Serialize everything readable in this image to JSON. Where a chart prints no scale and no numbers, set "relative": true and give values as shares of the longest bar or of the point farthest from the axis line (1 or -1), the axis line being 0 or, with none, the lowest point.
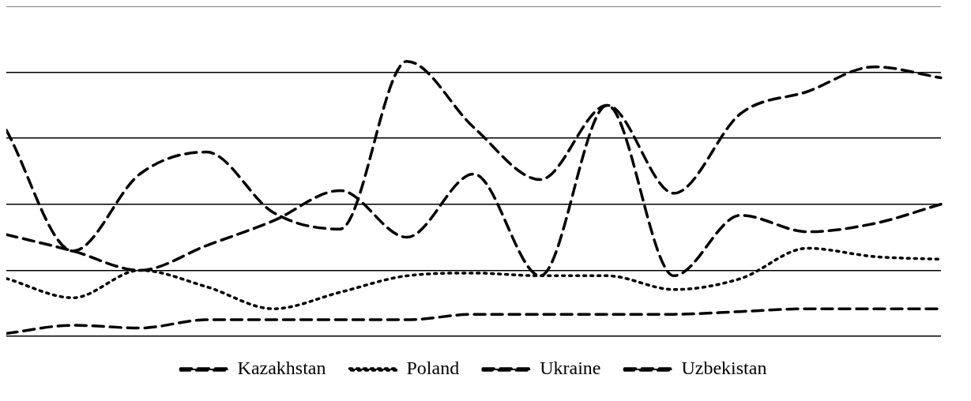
{
  "chart_data": {
    "type": "line",
    "relative": true,
    "grid": "y",
    "legend": "bottom",
    "marker": "none",
    "categories": [
      null,
      null,
      null,
      null,
      null,
      null,
      null,
      null,
      null,
      null,
      null,
      null,
      null,
      null,
      null
    ],
    "series": [
      {
        "name": "Kazakhstan",
        "color": "#000000",
        "line_style": "dashed",
        "values": [
          0.37,
          0.31,
          0.24,
          0.33,
          0.42,
          0.53,
          0.36,
          0.59,
          0.22,
          0.84,
          0.22,
          0.44,
          0.38,
          0.41,
          0.48
        ]
      },
      {
        "name": "Poland",
        "color": "#000000",
        "line_style": "dotted",
        "values": [
          0.21,
          0.14,
          0.24,
          0.18,
          0.1,
          0.16,
          0.22,
          0.23,
          0.22,
          0.22,
          0.17,
          0.21,
          0.32,
          0.29,
          0.28
        ]
      },
      {
        "name": "Ukraine",
        "color": "#000000",
        "line_style": "dashed",
        "values": [
          0.75,
          0.31,
          0.59,
          0.67,
          0.45,
          0.39,
          1,
          0.76,
          0.57,
          0.84,
          0.52,
          0.81,
          0.89,
          0.98,
          0.94
        ]
      },
      {
        "name": "Uzbekistan",
        "color": "#000000",
        "line_style": "dashed",
        "values": [
          0.01,
          0.04,
          0.03,
          0.06,
          0.06,
          0.06,
          0.06,
          0.08,
          0.08,
          0.08,
          0.08,
          0.09,
          0.1,
          0.1,
          0.1
        ]
      }
    ]
  }
}
